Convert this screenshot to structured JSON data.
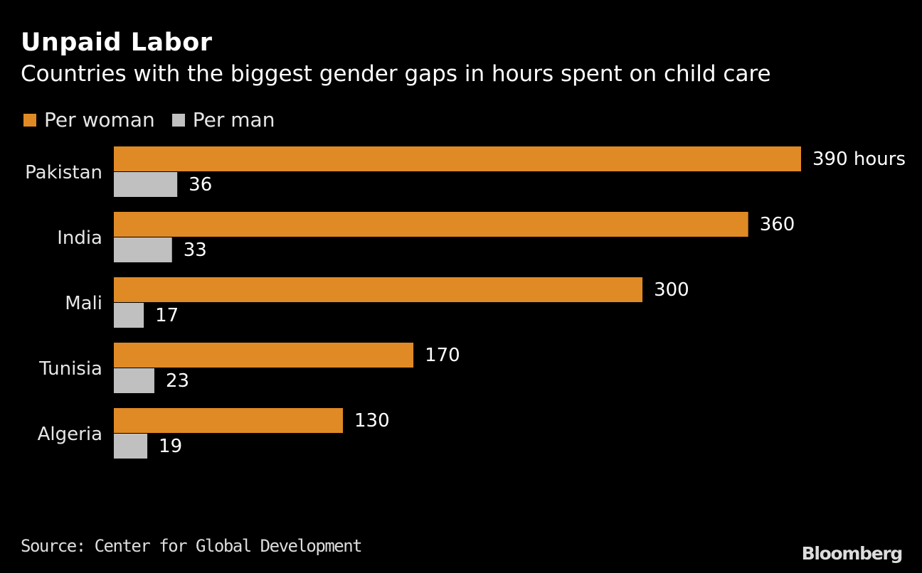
{
  "chart_data": {
    "type": "bar",
    "orientation": "horizontal",
    "title": "Unpaid Labor",
    "subtitle": "Countries with the biggest gender gaps in hours spent on child care",
    "categories": [
      "Pakistan",
      "India",
      "Mali",
      "Tunisia",
      "Algeria"
    ],
    "series": [
      {
        "name": "Per woman",
        "color": "#e08a26",
        "values": [
          390,
          360,
          300,
          170,
          130
        ],
        "labels": [
          "390 hours",
          "360",
          "300",
          "170",
          "130"
        ]
      },
      {
        "name": "Per man",
        "color": "#c0c0c0",
        "values": [
          36,
          33,
          17,
          23,
          19
        ],
        "labels": [
          "36",
          "33",
          "17",
          "23",
          "19"
        ]
      }
    ],
    "xlim": [
      0,
      390
    ],
    "unit": "hours",
    "grid": false,
    "legend_position": "top-left",
    "source": "Source: Center for Global Development",
    "brand": "Bloomberg"
  }
}
